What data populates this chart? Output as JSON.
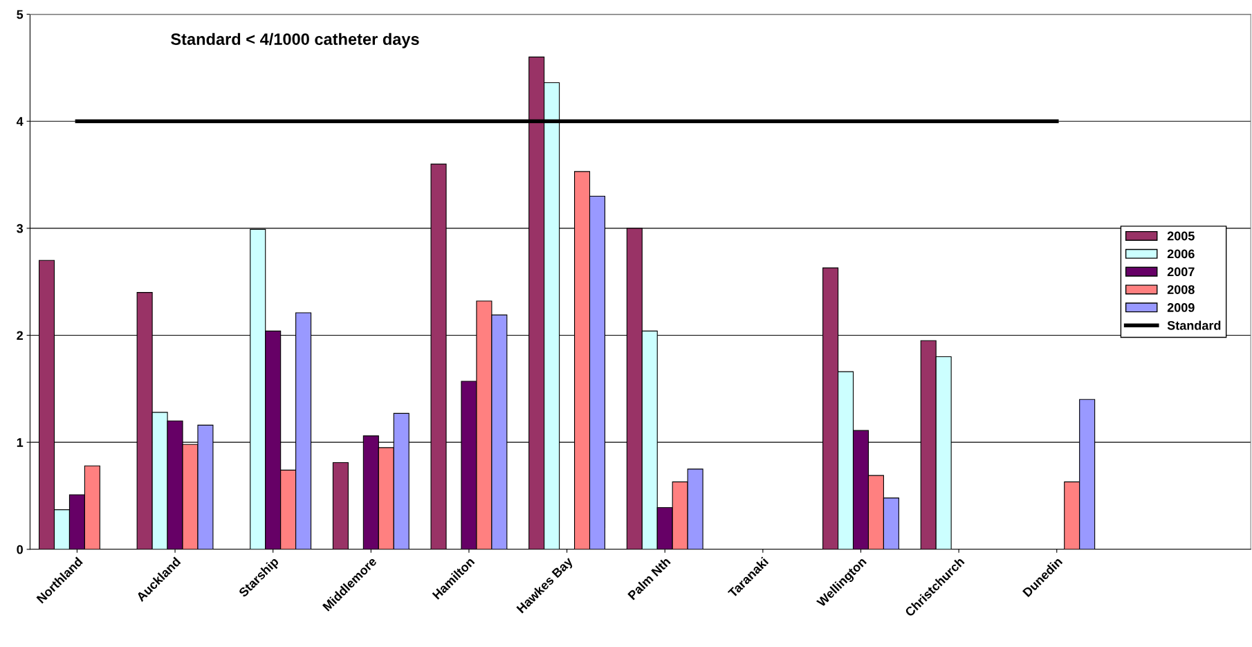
{
  "chart_data": {
    "type": "bar",
    "categories": [
      "Northland",
      "Auckland",
      "Starship",
      "Middlemore",
      "Hamilton",
      "Hawkes Bay",
      "Palm Nth",
      "Taranaki",
      "Wellington",
      "Christchurch",
      "Dunedin"
    ],
    "series": [
      {
        "name": "2005",
        "color": "#993366",
        "values": [
          2.7,
          2.4,
          null,
          0.81,
          3.6,
          4.6,
          3.0,
          null,
          2.63,
          1.95,
          null
        ]
      },
      {
        "name": "2006",
        "color": "#ccffff",
        "values": [
          0.37,
          1.28,
          2.99,
          null,
          null,
          4.36,
          2.04,
          null,
          1.66,
          1.8,
          null
        ]
      },
      {
        "name": "2007",
        "color": "#660066",
        "values": [
          0.51,
          1.2,
          2.04,
          1.06,
          1.57,
          null,
          0.39,
          null,
          1.11,
          null,
          null
        ]
      },
      {
        "name": "2008",
        "color": "#ff8080",
        "values": [
          0.78,
          0.98,
          0.74,
          0.95,
          2.32,
          3.53,
          0.63,
          null,
          0.69,
          null,
          0.63
        ]
      },
      {
        "name": "2009",
        "color": "#9999ff",
        "values": [
          null,
          1.16,
          2.21,
          1.27,
          2.19,
          3.3,
          0.75,
          null,
          0.48,
          null,
          1.4
        ]
      },
      {
        "name": "Standard",
        "type": "line",
        "color": "#000000",
        "values": [
          4,
          4,
          4,
          4,
          4,
          4,
          4,
          4,
          4,
          4,
          4
        ]
      }
    ],
    "ylim": [
      0,
      5
    ],
    "yticks": [
      0,
      1,
      2,
      3,
      4,
      5
    ],
    "grid": "y",
    "legend": "right",
    "annotations": [
      "Standard < 4/1000 catheter days"
    ]
  }
}
